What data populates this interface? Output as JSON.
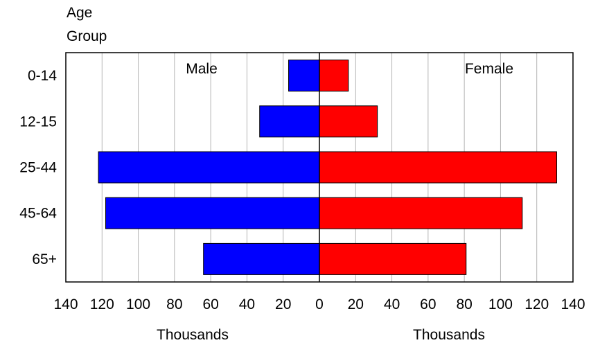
{
  "chart_data": {
    "type": "bar",
    "orientation": "horizontal-diverging",
    "y_title_line1": "Age",
    "y_title_line2": "Group",
    "categories": [
      "0-14",
      "12-15",
      "25-44",
      "45-64",
      "65+"
    ],
    "series": [
      {
        "name": "Male",
        "side": "left",
        "color": "#0000ff",
        "values": [
          17,
          33,
          122,
          118,
          64
        ]
      },
      {
        "name": "Female",
        "side": "right",
        "color": "#ff0000",
        "values": [
          16,
          32,
          131,
          112,
          81
        ]
      }
    ],
    "x_ticks": [
      "140",
      "120",
      "100",
      "80",
      "60",
      "40",
      "20",
      "0",
      "20",
      "40",
      "60",
      "80",
      "100",
      "120",
      "140"
    ],
    "xlim": [
      -140,
      140
    ],
    "xlabel_left": "Thousands",
    "xlabel_right": "Thousands",
    "grid": true,
    "grid_color": "#b4b4b4"
  }
}
